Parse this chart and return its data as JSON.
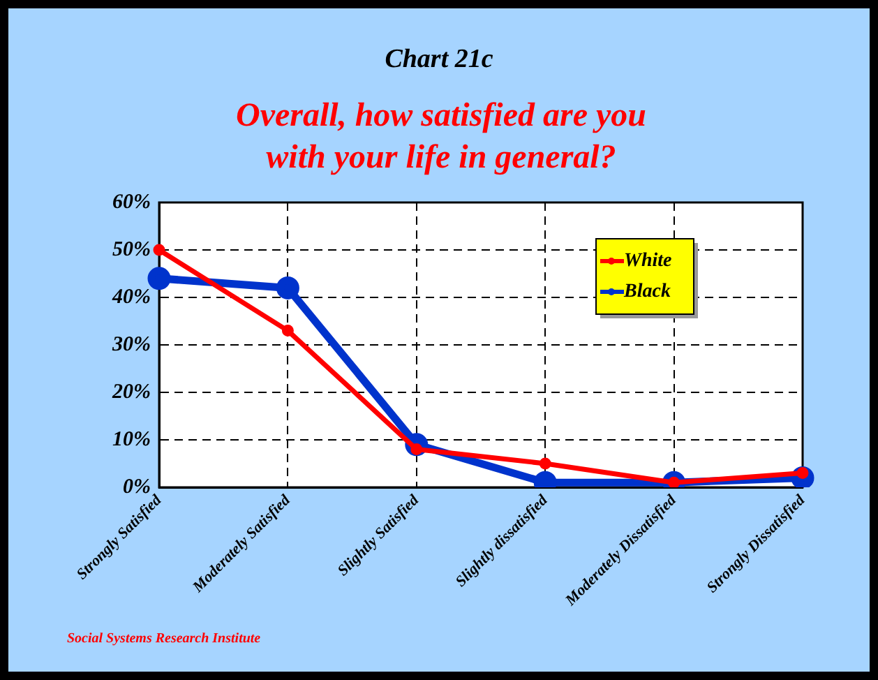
{
  "chart_data": {
    "type": "line",
    "title": "Chart 21c",
    "subtitle": "Overall, how satisfied are you with your life in general?",
    "categories": [
      "Strongly Satisfied",
      "Moderately Satisfied",
      "Slightly Satisfied",
      "Slightly dissatisfied",
      "Moderately Dissatisfied",
      "Strongly Dissatisfied"
    ],
    "series": [
      {
        "name": "White",
        "color": "#ff0000",
        "values": [
          50,
          33,
          8,
          5,
          1,
          3
        ]
      },
      {
        "name": "Black",
        "color": "#0033cc",
        "values": [
          44,
          42,
          9,
          1,
          1,
          2
        ]
      }
    ],
    "ylim": [
      0,
      60
    ],
    "yticks": [
      {
        "value": 0,
        "label": "0%"
      },
      {
        "value": 10,
        "label": "10%"
      },
      {
        "value": 20,
        "label": "20%"
      },
      {
        "value": 30,
        "label": "30%"
      },
      {
        "value": 40,
        "label": "40%"
      },
      {
        "value": 50,
        "label": "50%"
      },
      {
        "value": 60,
        "label": "60%"
      }
    ],
    "grid": true,
    "legend": "top right",
    "marker": "circle",
    "line_style": "solid",
    "annotations": [
      "Social Systems Research Institute"
    ]
  }
}
